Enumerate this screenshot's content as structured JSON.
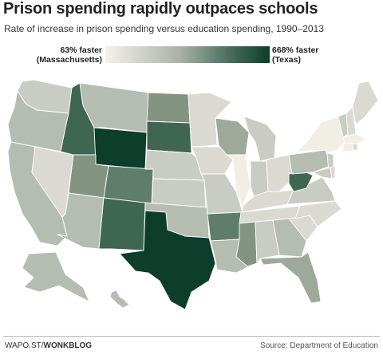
{
  "title": "Prison spending rapidly outpaces schools",
  "subtitle": "Rate of increase in prison spending versus education spending, 1990–2013",
  "legend": {
    "min_label_line1": "63% faster",
    "min_label_line2": "(Massachusetts)",
    "max_label_line1": "668% faster",
    "max_label_line2": "(Texas)",
    "color_min": "#f4f1ea",
    "color_max": "#0d3d2b"
  },
  "footer": {
    "source_prefix": "WAPO.ST/",
    "source_brand": "WONKBLOG",
    "credit": "Source: Department of Education"
  },
  "colors": {
    "lightest": "#f1eee6",
    "light": "#dad9d2",
    "pale": "#c9ccc4",
    "mid_light": "#b5bcb2",
    "mid": "#9ea99c",
    "mid_dark": "#849483",
    "dark": "#5f7d6c",
    "darker": "#3f6652",
    "darkest": "#0d3d2b"
  }
}
